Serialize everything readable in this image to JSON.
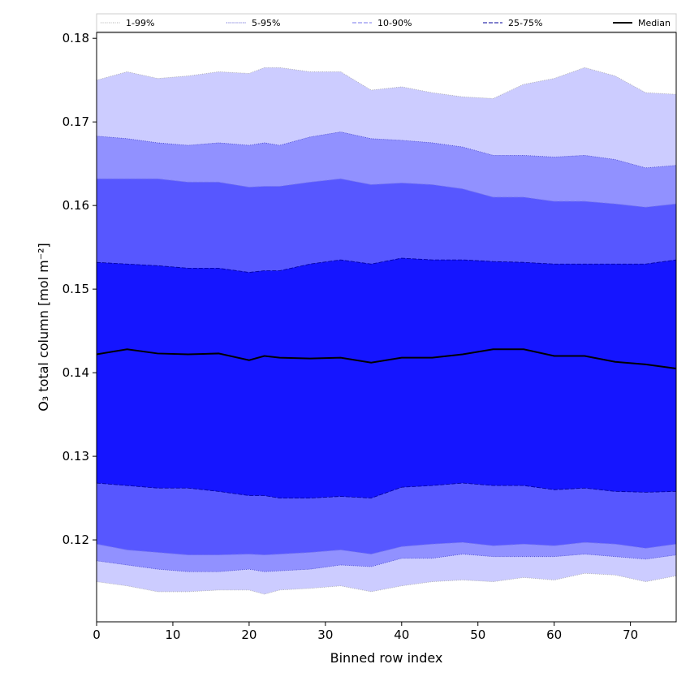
{
  "chart_data": {
    "type": "area",
    "xlabel": "Binned row index",
    "ylabel": "O₃ total column [mol m⁻²]",
    "xlim": [
      0,
      76
    ],
    "ylim": [
      0.1102,
      0.1807
    ],
    "xticks": [
      0,
      10,
      20,
      30,
      40,
      50,
      60,
      70
    ],
    "yticks": [
      0.12,
      0.13,
      0.14,
      0.15,
      0.16,
      0.17,
      0.18
    ],
    "ytick_labels": [
      "0.12",
      "0.13",
      "0.14",
      "0.15",
      "0.16",
      "0.17",
      "0.18"
    ],
    "grid": false,
    "legend_position": "top",
    "x": [
      0,
      4,
      8,
      12,
      16,
      20,
      22,
      24,
      28,
      32,
      36,
      40,
      44,
      48,
      52,
      56,
      60,
      64,
      68,
      72,
      76
    ],
    "bands": [
      {
        "name": "1-99%",
        "color": "#ccccff",
        "line_color": "#aaaaaa",
        "line_style": "dotted",
        "lower": [
          0.115,
          0.1145,
          0.1138,
          0.1138,
          0.114,
          0.114,
          0.1135,
          0.114,
          0.1142,
          0.1145,
          0.1138,
          0.1145,
          0.115,
          0.1152,
          0.115,
          0.1155,
          0.1152,
          0.116,
          0.1158,
          0.115,
          0.1157
        ],
        "upper": [
          0.175,
          0.176,
          0.1752,
          0.1755,
          0.176,
          0.1758,
          0.1765,
          0.1765,
          0.176,
          0.176,
          0.1738,
          0.1742,
          0.1735,
          0.173,
          0.1728,
          0.1745,
          0.1752,
          0.1765,
          0.1755,
          0.1735,
          0.1733
        ]
      },
      {
        "name": "5-95%",
        "color": "#9191ff",
        "line_color": "#4444cc",
        "line_style": "dotted",
        "lower": [
          0.1175,
          0.117,
          0.1165,
          0.1162,
          0.1162,
          0.1165,
          0.1162,
          0.1163,
          0.1165,
          0.117,
          0.1168,
          0.1178,
          0.1178,
          0.1183,
          0.118,
          0.118,
          0.118,
          0.1183,
          0.118,
          0.1177,
          0.1182
        ],
        "upper": [
          0.1683,
          0.168,
          0.1675,
          0.1672,
          0.1675,
          0.1672,
          0.1675,
          0.1672,
          0.1682,
          0.1688,
          0.168,
          0.1678,
          0.1675,
          0.167,
          0.166,
          0.166,
          0.1658,
          0.166,
          0.1655,
          0.1645,
          0.1648
        ]
      },
      {
        "name": "10-90%",
        "color": "#5757ff",
        "line_color": "#7777ee",
        "line_style": "dashed",
        "lower": [
          0.1195,
          0.1188,
          0.1185,
          0.1182,
          0.1182,
          0.1183,
          0.1182,
          0.1183,
          0.1185,
          0.1188,
          0.1183,
          0.1192,
          0.1195,
          0.1197,
          0.1193,
          0.1195,
          0.1193,
          0.1197,
          0.1195,
          0.119,
          0.1195
        ],
        "upper": [
          0.1632,
          0.1632,
          0.1632,
          0.1628,
          0.1628,
          0.1622,
          0.1623,
          0.1623,
          0.1628,
          0.1632,
          0.1625,
          0.1627,
          0.1625,
          0.162,
          0.161,
          0.161,
          0.1605,
          0.1605,
          0.1602,
          0.1598,
          0.1602
        ]
      },
      {
        "name": "25-75%",
        "color": "#2a2aff",
        "line_color": "#000099",
        "line_style": "dashed",
        "lower": [
          0.1268,
          0.1265,
          0.1262,
          0.1262,
          0.1258,
          0.1253,
          0.1253,
          0.125,
          0.125,
          0.1252,
          0.125,
          0.1263,
          0.1265,
          0.1268,
          0.1265,
          0.1265,
          0.126,
          0.1262,
          0.1258,
          0.1257,
          0.1258
        ],
        "upper": [
          0.1532,
          0.153,
          0.1528,
          0.1525,
          0.1525,
          0.152,
          0.1522,
          0.1522,
          0.153,
          0.1535,
          0.153,
          0.1537,
          0.1535,
          0.1535,
          0.1533,
          0.1532,
          0.153,
          0.153,
          0.153,
          0.153,
          0.1535
        ]
      }
    ],
    "median": {
      "name": "Median",
      "color": "#000000",
      "values": [
        0.1422,
        0.1428,
        0.1423,
        0.1422,
        0.1423,
        0.1415,
        0.142,
        0.1418,
        0.1417,
        0.1418,
        0.1412,
        0.1418,
        0.1418,
        0.1422,
        0.1428,
        0.1428,
        0.142,
        0.142,
        0.1413,
        0.141,
        0.1405
      ]
    },
    "central_fill_color": "#1515ff"
  }
}
